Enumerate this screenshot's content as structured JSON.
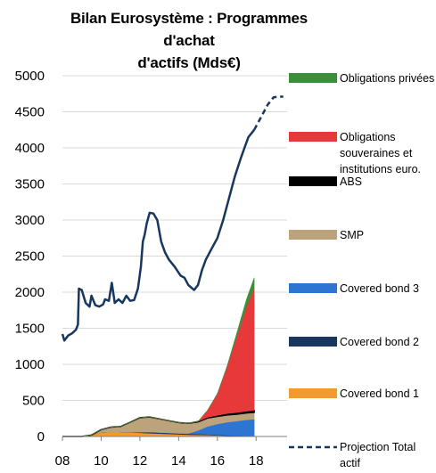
{
  "chart_data": {
    "type": "area",
    "title_lines": [
      "Bilan Eurosystème : Programmes d'achat",
      "d'actifs (Mds€)"
    ],
    "xlabel": "",
    "ylabel": "",
    "ylim": [
      0,
      5000
    ],
    "y_ticks": [
      0,
      500,
      1000,
      1500,
      2000,
      2500,
      3000,
      3500,
      4000,
      4500,
      5000
    ],
    "xlim": [
      2008,
      2019.6
    ],
    "x_ticks": [
      {
        "v": 2008,
        "label": "08"
      },
      {
        "v": 2010,
        "label": "10"
      },
      {
        "v": 2012,
        "label": "12"
      },
      {
        "v": 2014,
        "label": "14"
      },
      {
        "v": 2016,
        "label": "16"
      },
      {
        "v": 2018,
        "label": "18"
      }
    ],
    "grid": true,
    "legend": "right",
    "stack_x": [
      2008.0,
      2009.0,
      2009.5,
      2010.0,
      2010.5,
      2011.0,
      2011.5,
      2012.0,
      2012.5,
      2013.0,
      2013.5,
      2014.0,
      2014.5,
      2015.0,
      2015.5,
      2016.0,
      2016.5,
      2017.0,
      2017.5,
      2017.9
    ],
    "area_series": [
      {
        "name": "Covered bond 1",
        "color": "#F39A2E",
        "values": [
          0,
          0,
          20,
          55,
          60,
          58,
          55,
          50,
          45,
          40,
          35,
          30,
          25,
          22,
          20,
          15,
          10,
          8,
          6,
          5
        ]
      },
      {
        "name": "Covered bond 2",
        "color": "#17375E",
        "values": [
          0,
          0,
          0,
          0,
          0,
          0,
          2,
          10,
          15,
          15,
          14,
          13,
          12,
          11,
          10,
          8,
          7,
          6,
          5,
          5
        ]
      },
      {
        "name": "Covered bond 3",
        "color": "#2E75D1",
        "values": [
          0,
          0,
          0,
          0,
          0,
          0,
          0,
          0,
          0,
          0,
          0,
          0,
          5,
          50,
          110,
          150,
          180,
          200,
          220,
          230
        ]
      },
      {
        "name": "SMP",
        "color": "#BDA37B",
        "values": [
          0,
          0,
          0,
          40,
          70,
          80,
          140,
          200,
          210,
          190,
          170,
          150,
          140,
          120,
          115,
          105,
          100,
          95,
          95,
          95
        ]
      },
      {
        "name": "ABS",
        "color": "#000000",
        "values": [
          0,
          0,
          0,
          0,
          0,
          0,
          0,
          0,
          0,
          0,
          0,
          0,
          0,
          5,
          10,
          15,
          20,
          22,
          24,
          25
        ]
      },
      {
        "name": "Obligations souveraines et institutions euro.",
        "color": "#E8393A",
        "values": [
          0,
          0,
          0,
          0,
          0,
          0,
          0,
          0,
          0,
          0,
          0,
          0,
          0,
          0,
          100,
          300,
          650,
          1050,
          1450,
          1700
        ]
      },
      {
        "name": "Obligations privées",
        "color": "#3C8F3A",
        "values": [
          0,
          0,
          0,
          0,
          0,
          0,
          0,
          0,
          0,
          0,
          0,
          0,
          0,
          0,
          0,
          0,
          10,
          50,
          100,
          140
        ]
      }
    ],
    "total_actif": {
      "color": "#17375E",
      "points": [
        [
          2008.0,
          1420
        ],
        [
          2008.1,
          1330
        ],
        [
          2008.3,
          1400
        ],
        [
          2008.5,
          1430
        ],
        [
          2008.7,
          1480
        ],
        [
          2008.8,
          1550
        ],
        [
          2008.85,
          2050
        ],
        [
          2009.0,
          2030
        ],
        [
          2009.2,
          1850
        ],
        [
          2009.4,
          1800
        ],
        [
          2009.5,
          1950
        ],
        [
          2009.7,
          1820
        ],
        [
          2009.9,
          1800
        ],
        [
          2010.1,
          1830
        ],
        [
          2010.2,
          1900
        ],
        [
          2010.4,
          1880
        ],
        [
          2010.55,
          2130
        ],
        [
          2010.7,
          1850
        ],
        [
          2010.9,
          1900
        ],
        [
          2011.1,
          1850
        ],
        [
          2011.3,
          1950
        ],
        [
          2011.5,
          1880
        ],
        [
          2011.7,
          1890
        ],
        [
          2011.9,
          2050
        ],
        [
          2012.05,
          2350
        ],
        [
          2012.15,
          2700
        ],
        [
          2012.25,
          2800
        ],
        [
          2012.35,
          2950
        ],
        [
          2012.5,
          3100
        ],
        [
          2012.7,
          3090
        ],
        [
          2012.9,
          3000
        ],
        [
          2013.1,
          2700
        ],
        [
          2013.3,
          2550
        ],
        [
          2013.5,
          2450
        ],
        [
          2013.8,
          2350
        ],
        [
          2014.1,
          2230
        ],
        [
          2014.3,
          2200
        ],
        [
          2014.5,
          2100
        ],
        [
          2014.8,
          2030
        ],
        [
          2015.0,
          2100
        ],
        [
          2015.2,
          2300
        ],
        [
          2015.4,
          2450
        ],
        [
          2015.6,
          2550
        ],
        [
          2015.8,
          2650
        ],
        [
          2016.0,
          2750
        ],
        [
          2016.3,
          3000
        ],
        [
          2016.6,
          3300
        ],
        [
          2016.9,
          3600
        ],
        [
          2017.2,
          3850
        ],
        [
          2017.4,
          4000
        ],
        [
          2017.6,
          4150
        ],
        [
          2017.9,
          4250
        ]
      ]
    },
    "projection": {
      "name": "Projection Total actif",
      "color": "#17375E",
      "points": [
        [
          2017.9,
          4250
        ],
        [
          2018.3,
          4450
        ],
        [
          2018.6,
          4600
        ],
        [
          2018.9,
          4700
        ],
        [
          2019.2,
          4710
        ],
        [
          2019.4,
          4710
        ]
      ]
    },
    "legend_entries": [
      {
        "lines": [
          "Obligations privées"
        ],
        "color": "#3C8F3A",
        "kind": "box"
      },
      {
        "lines": [
          "Obligations",
          "souveraines et",
          "institutions euro."
        ],
        "color": "#E8393A",
        "kind": "box"
      },
      {
        "lines": [
          "ABS"
        ],
        "color": "#000000",
        "kind": "box"
      },
      {
        "lines": [
          "SMP"
        ],
        "color": "#BDA37B",
        "kind": "box"
      },
      {
        "lines": [
          "Covered bond 3"
        ],
        "color": "#2E75D1",
        "kind": "box"
      },
      {
        "lines": [
          "Covered bond 2"
        ],
        "color": "#17375E",
        "kind": "box"
      },
      {
        "lines": [
          "Covered bond 1"
        ],
        "color": "#F39A2E",
        "kind": "box"
      },
      {
        "lines": [
          "Projection Total",
          "actif"
        ],
        "color": "#17375E",
        "kind": "dash"
      }
    ]
  }
}
